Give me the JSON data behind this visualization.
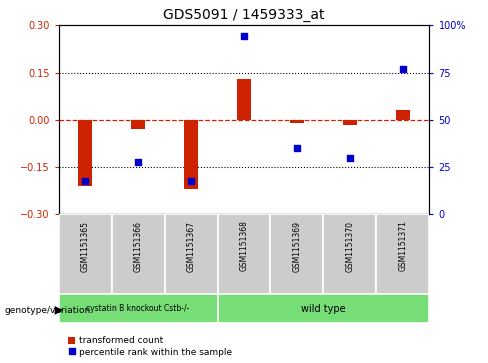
{
  "title": "GDS5091 / 1459333_at",
  "samples": [
    "GSM1151365",
    "GSM1151366",
    "GSM1151367",
    "GSM1151368",
    "GSM1151369",
    "GSM1151370",
    "GSM1151371"
  ],
  "bar_values": [
    -0.21,
    -0.03,
    -0.22,
    0.13,
    -0.01,
    -0.015,
    0.03
  ],
  "dot_values_scaled": [
    -0.195,
    -0.135,
    -0.195,
    0.265,
    -0.09,
    -0.12,
    0.16
  ],
  "ylim_left": [
    -0.3,
    0.3
  ],
  "ylim_right": [
    0,
    100
  ],
  "yticks_left": [
    -0.3,
    -0.15,
    0.0,
    0.15,
    0.3
  ],
  "yticks_right": [
    0,
    25,
    50,
    75,
    100
  ],
  "bar_color": "#cc2200",
  "dot_color": "#0000cc",
  "zero_line_color": "#cc2200",
  "dotted_line_color": "#000000",
  "group1_label": "cystatin B knockout Cstb-/-",
  "group2_label": "wild type",
  "group_color": "#77dd77",
  "legend_bar_label": "transformed count",
  "legend_dot_label": "percentile rank within the sample",
  "genotype_label": "genotype/variation"
}
